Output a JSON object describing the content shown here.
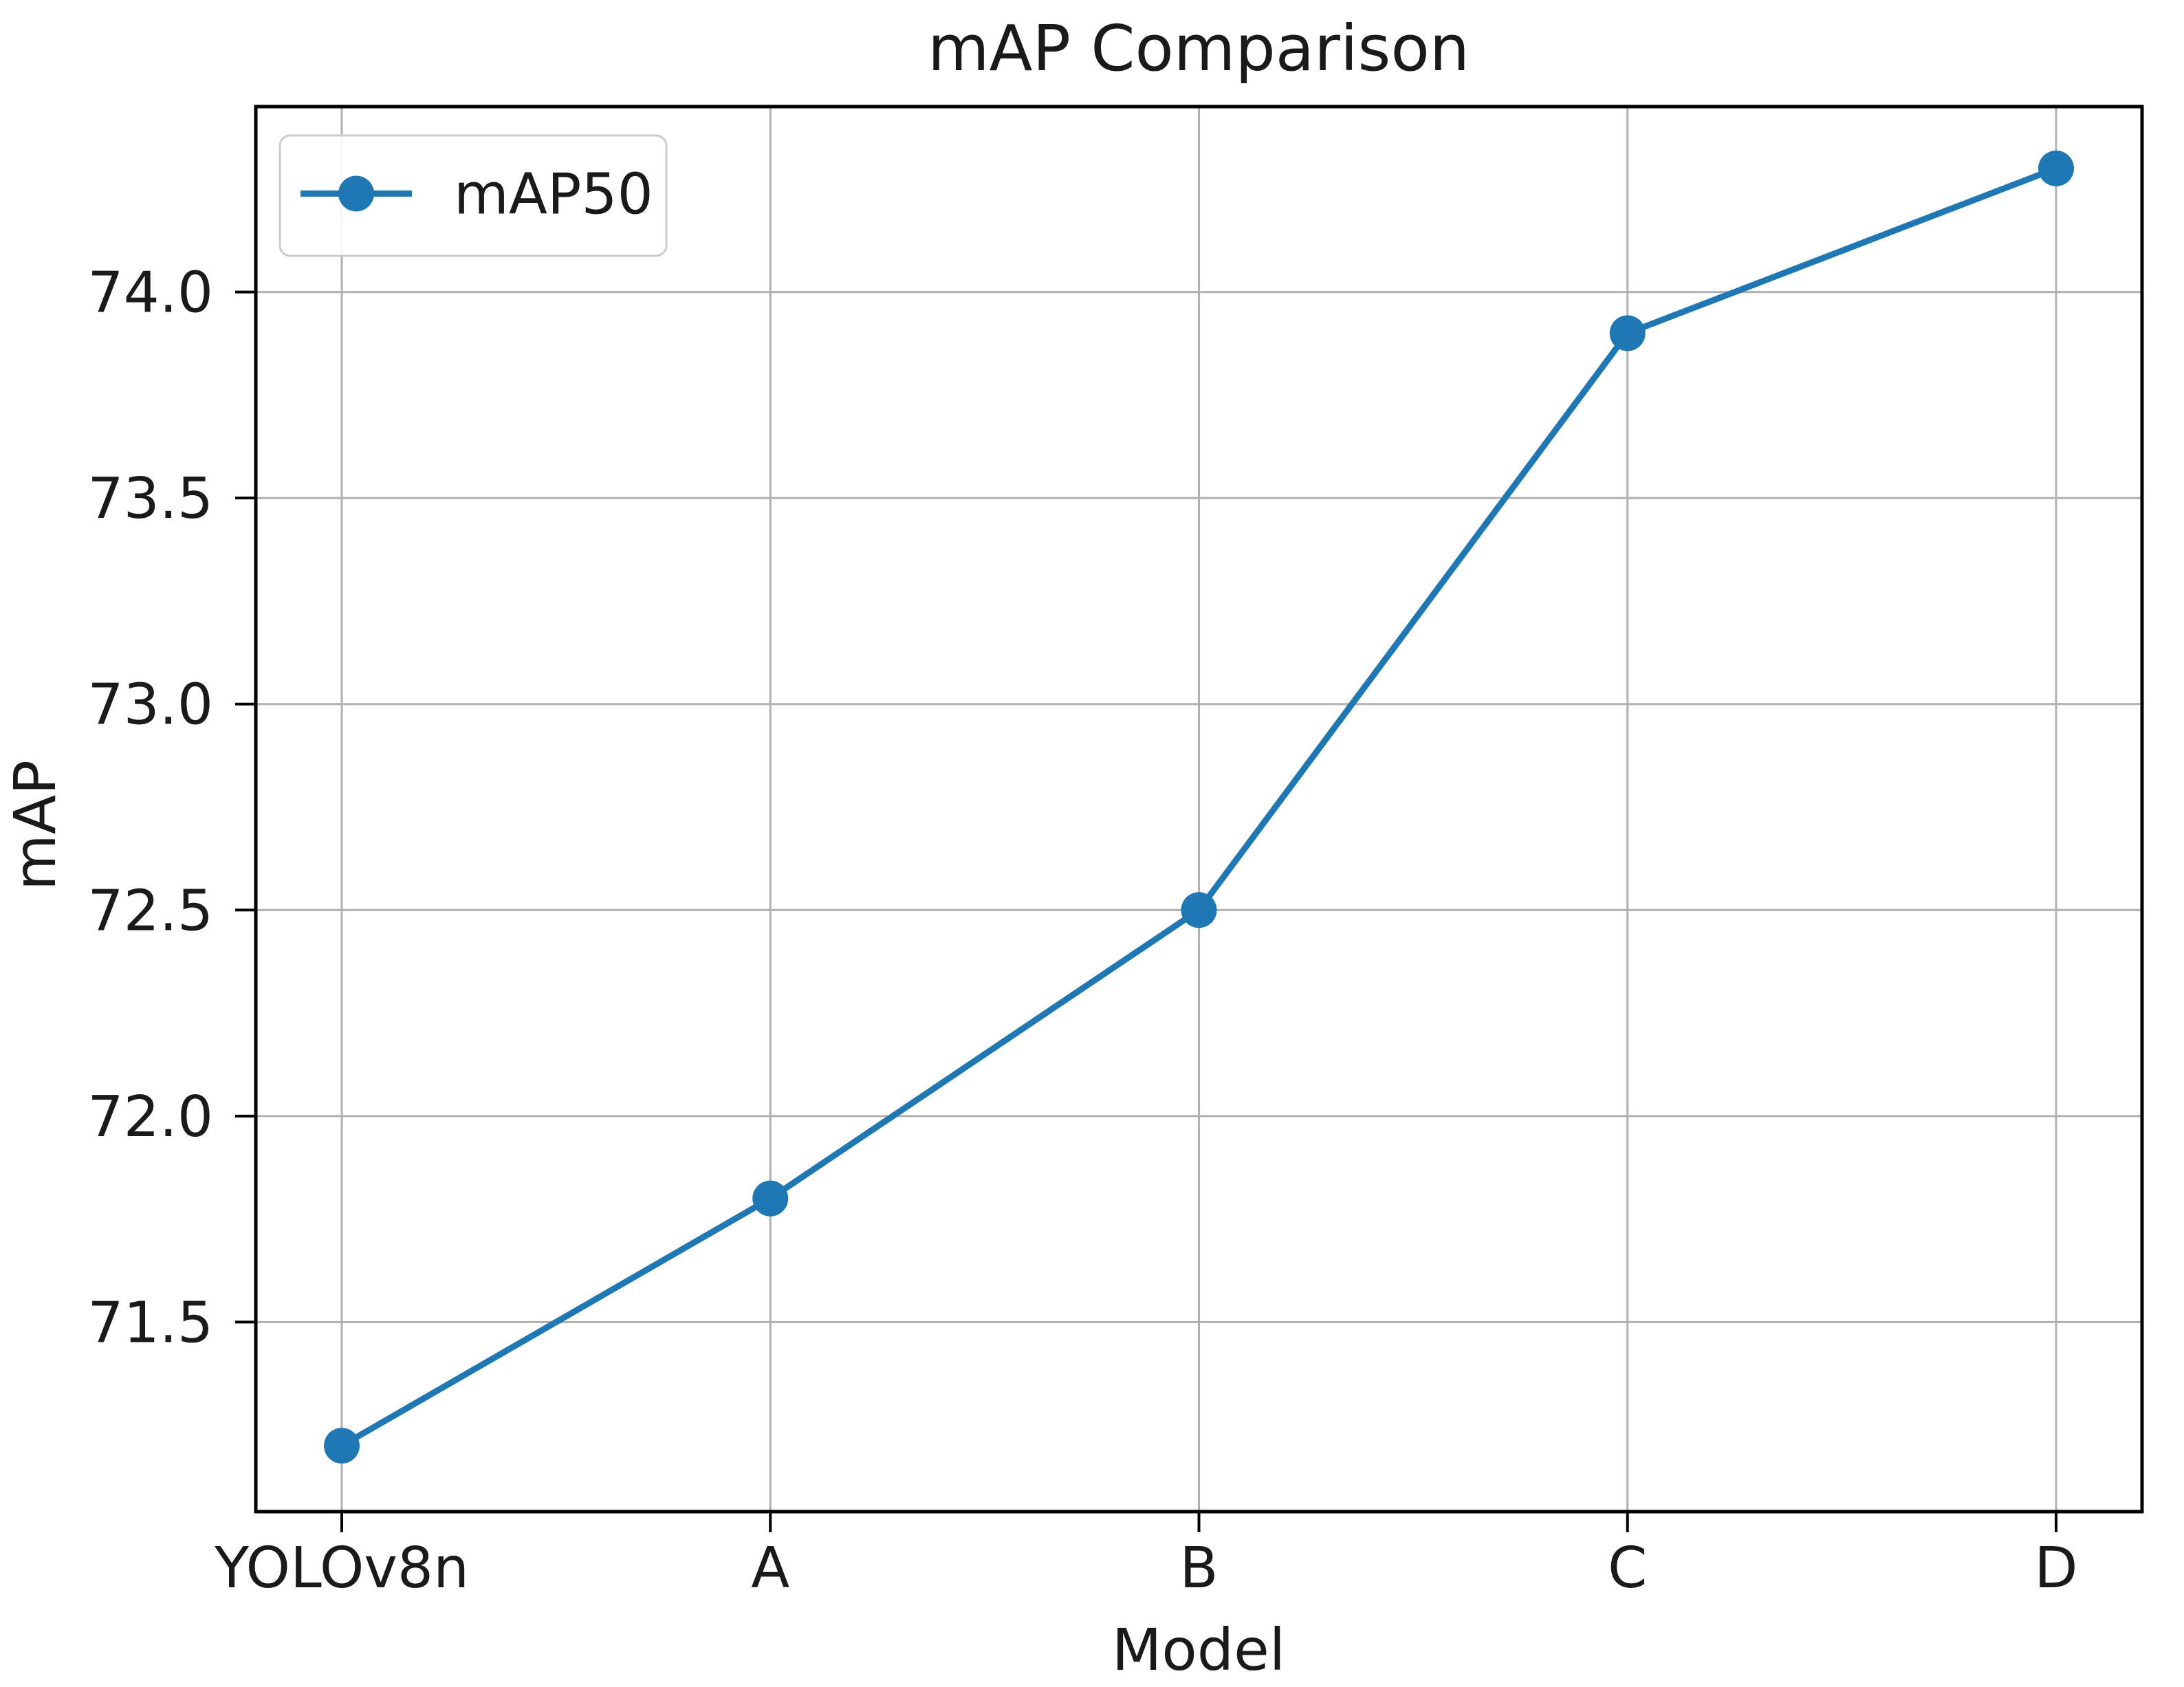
{
  "title": "mAP Comparison",
  "chart_data": {
    "type": "line",
    "title": "mAP Comparison",
    "xlabel": "Model",
    "ylabel": "mAP",
    "categories": [
      "YOLOv8n",
      "A",
      "B",
      "C",
      "D"
    ],
    "series": [
      {
        "name": "mAP50",
        "values": [
          71.2,
          71.8,
          72.5,
          73.9,
          74.3
        ],
        "color": "#1f77b4",
        "marker": "circle"
      }
    ],
    "yticks": [
      71.5,
      72.0,
      72.5,
      73.0,
      73.5,
      74.0
    ],
    "ytick_labels": [
      "71.5",
      "72.0",
      "72.5",
      "73.0",
      "73.5",
      "74.0"
    ],
    "ylim": [
      71.04,
      74.45
    ],
    "grid": true,
    "grid_color": "#b0b0b0",
    "spine_color": "#000000",
    "background_color": "#ffffff",
    "legend_position": "upper left"
  },
  "legend": {
    "entries": [
      {
        "label": "mAP50",
        "color": "#1f77b4",
        "symbol": "line-with-circle-marker"
      }
    ]
  }
}
